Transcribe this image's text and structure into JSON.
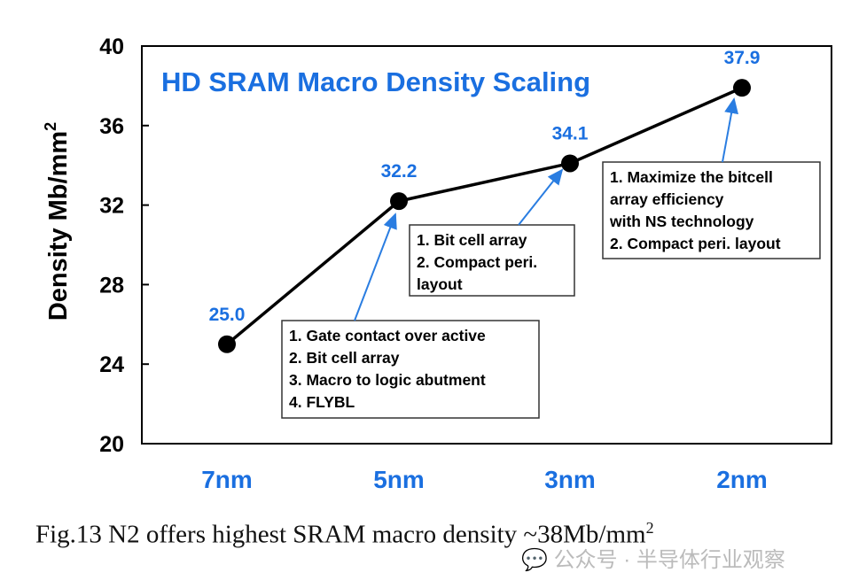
{
  "chart_data": {
    "type": "line",
    "title": "HD SRAM Macro Density Scaling",
    "ylabel": "Density Mb/mm",
    "ylabel_superscript": "2",
    "categories": [
      "7nm",
      "5nm",
      "3nm",
      "2nm"
    ],
    "values": [
      25.0,
      32.2,
      34.1,
      37.9
    ],
    "data_labels": [
      "25.0",
      "32.2",
      "34.1",
      "37.9"
    ],
    "ylim": [
      20,
      40
    ],
    "yticks": [
      20,
      24,
      28,
      32,
      36,
      40
    ],
    "grid": false,
    "colors": {
      "title": "#1a6fe0",
      "labels": "#1a6fe0",
      "line": "#000000",
      "arrow": "#2a7de1"
    },
    "annotations": [
      {
        "target": "5nm",
        "lines": [
          "1. Gate contact over active",
          "2. Bit cell array",
          "3. Macro to logic abutment",
          "4. FLYBL"
        ]
      },
      {
        "target": "3nm",
        "lines": [
          "1. Bit cell array",
          "2. Compact peri.",
          "    layout"
        ]
      },
      {
        "target": "2nm",
        "lines": [
          "1. Maximize the bitcell",
          "     array efficiency",
          "       with NS technology",
          "2. Compact peri. layout"
        ]
      }
    ]
  },
  "caption": {
    "text": "Fig.13  N2 offers highest SRAM macro density ~38Mb/mm",
    "sup": "2"
  },
  "watermark": "公众号 · 半导体行业观察"
}
